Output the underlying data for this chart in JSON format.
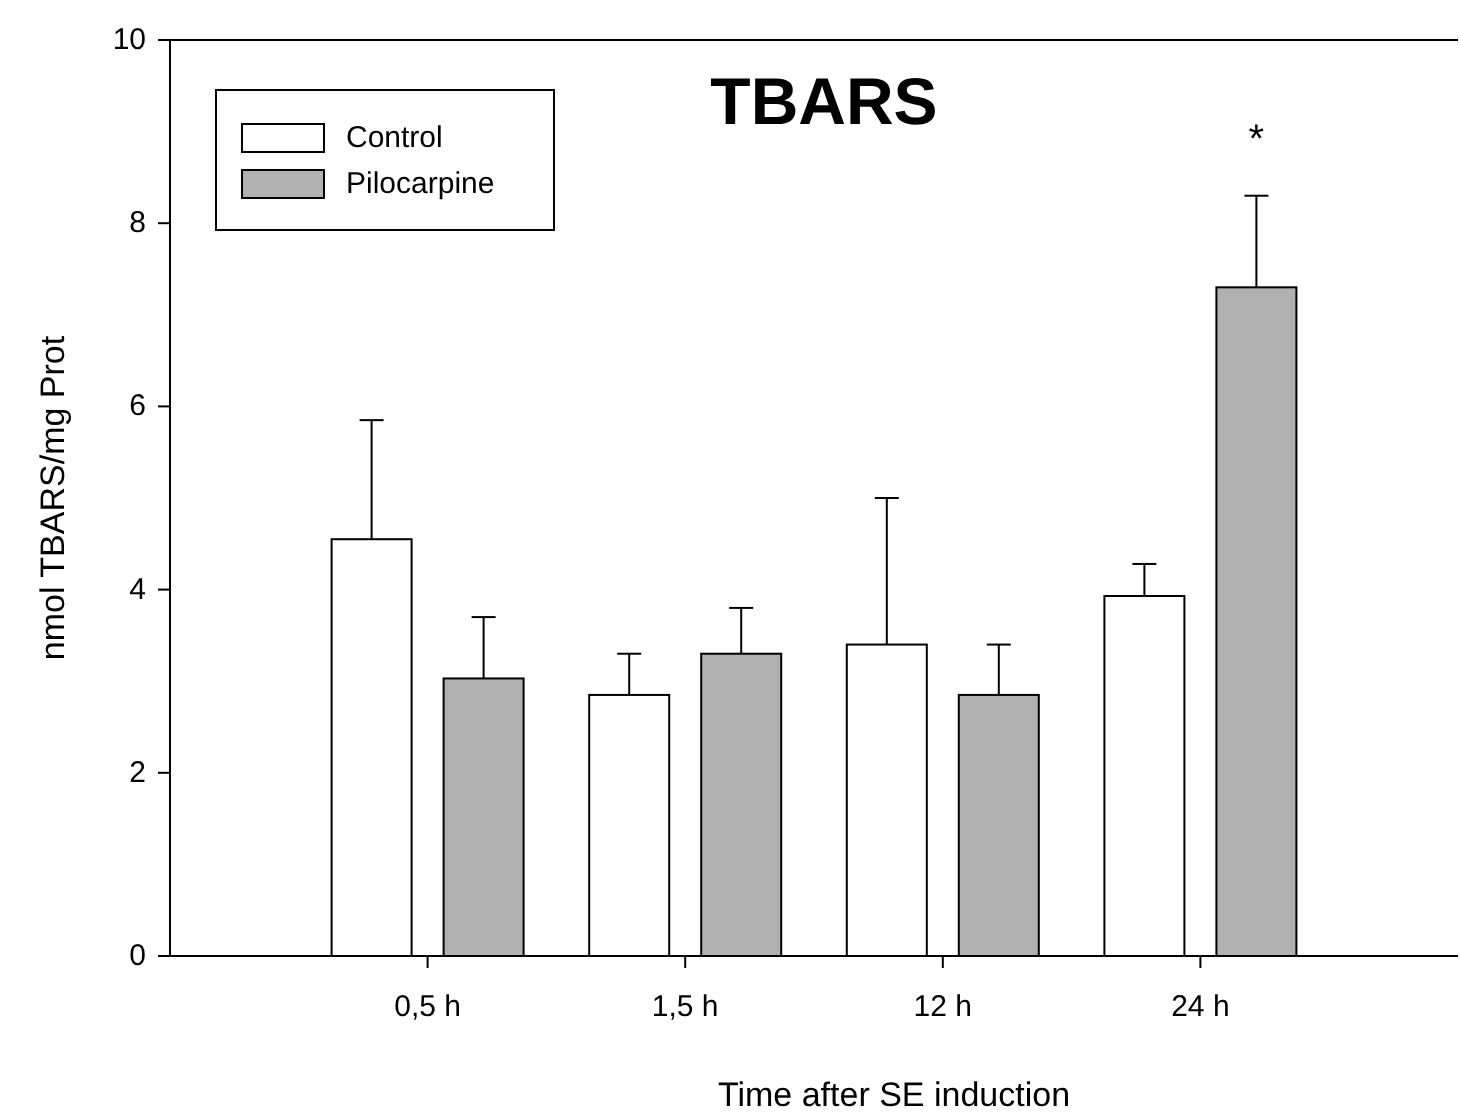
{
  "chart_data": {
    "type": "bar",
    "title": "TBARS",
    "xlabel": "Time after SE induction",
    "ylabel": "nmol TBARS/mg Prot",
    "categories": [
      "0,5 h",
      "1,5 h",
      "12 h",
      "24 h"
    ],
    "series": [
      {
        "name": "Control",
        "color": "#ffffff",
        "values": [
          4.55,
          2.85,
          3.4,
          3.93
        ],
        "errors": [
          [
            4.55,
            5.85
          ],
          [
            2.85,
            3.3
          ],
          [
            3.4,
            5.0
          ],
          [
            3.93,
            4.28
          ]
        ]
      },
      {
        "name": "Pilocarpine",
        "color": "#b0b0b0",
        "values": [
          3.03,
          3.3,
          2.85,
          7.3
        ],
        "errors": [
          [
            3.03,
            3.7
          ],
          [
            3.3,
            3.8
          ],
          [
            2.85,
            3.4
          ],
          [
            7.3,
            8.3
          ]
        ]
      }
    ],
    "ylim": [
      0,
      10
    ],
    "yticks": [
      0,
      2,
      4,
      6,
      8,
      10
    ],
    "grid": false,
    "legend": "top left",
    "annotations": [
      "*"
    ]
  }
}
